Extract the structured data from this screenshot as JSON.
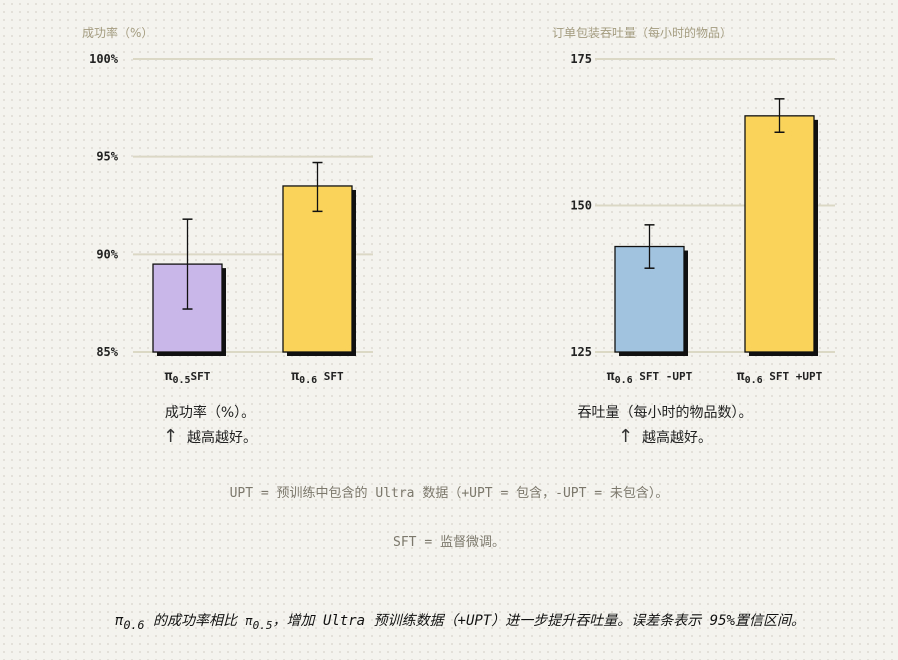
{
  "chart_data": [
    {
      "type": "bar",
      "title": "成功率（%）",
      "ylim": [
        85,
        100
      ],
      "yticks": [
        85,
        90,
        95,
        100
      ],
      "ytick_labels": [
        "85%",
        "90%",
        "95%",
        "100%"
      ],
      "categories": [
        {
          "pi": "π",
          "sub": "0.5",
          "suffix": "SFT"
        },
        {
          "pi": "π",
          "sub": "0.6",
          "suffix": " SFT"
        }
      ],
      "values": [
        89.5,
        93.5
      ],
      "err_low": [
        87.2,
        92.2
      ],
      "err_high": [
        91.8,
        94.7
      ],
      "colors": [
        "#cab7e9",
        "#fad45a"
      ],
      "caption": "成功率（%）。",
      "better": "越高越好。"
    },
    {
      "type": "bar",
      "title": "订单包装吞吐量（每小时的物品）",
      "ylim": [
        125,
        175
      ],
      "yticks": [
        125,
        150,
        175
      ],
      "ytick_labels": [
        "125",
        "150",
        "175"
      ],
      "categories": [
        {
          "pi": "π",
          "sub": "0.6",
          "suffix": " SFT -UPT"
        },
        {
          "pi": "π",
          "sub": "0.6",
          "suffix": " SFT +UPT"
        }
      ],
      "values": [
        143,
        165.3
      ],
      "err_low": [
        139.3,
        162.5
      ],
      "err_high": [
        146.7,
        168.2
      ],
      "colors": [
        "#a2c3df",
        "#fad45a"
      ],
      "caption": "吞吐量（每小时的物品数）。",
      "better": "越高越好。"
    }
  ],
  "arrow": "↑",
  "notes": {
    "upt": "UPT = 预训练中包含的 Ultra 数据（+UPT = 包含，-UPT = 未包含）。",
    "sft": "SFT = 监督微调。"
  },
  "footer": {
    "pi_a": "π",
    "sub_a": "0.6",
    "text_a": " 的成功率相比 ",
    "pi_b": "π",
    "sub_b": "0.5",
    "text_b": "，增加 Ultra 预训练数据（+UPT）进一步提升吞吐量。误差条表示 95%置信区间。"
  }
}
